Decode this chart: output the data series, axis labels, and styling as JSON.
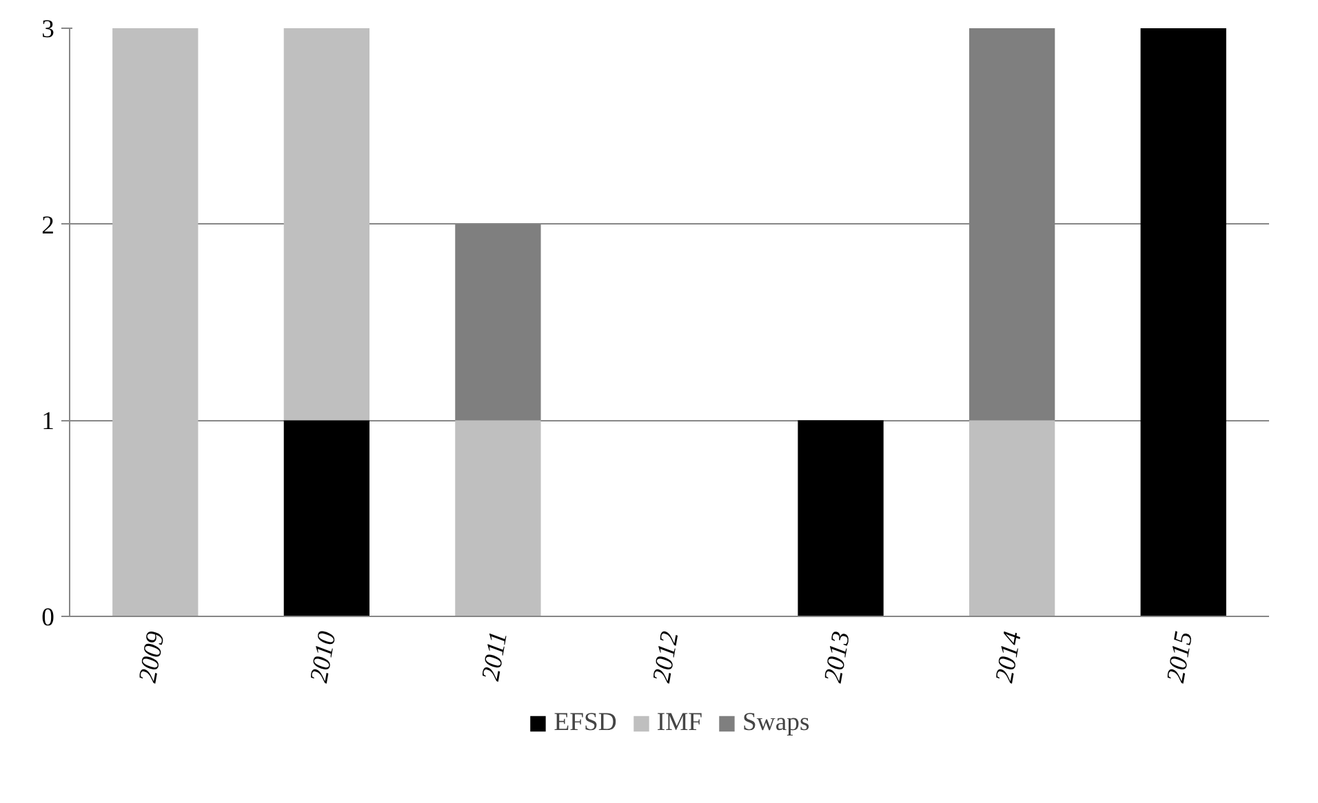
{
  "chart_data": {
    "type": "bar",
    "stacked": true,
    "categories": [
      "2009",
      "2010",
      "2011",
      "2012",
      "2013",
      "2014",
      "2015"
    ],
    "series": [
      {
        "name": "EFSD",
        "color": "#000000",
        "values": [
          0,
          1,
          0,
          0,
          1,
          0,
          3
        ]
      },
      {
        "name": "IMF",
        "color": "#bfbfbf",
        "values": [
          3,
          2,
          1,
          0,
          0,
          1,
          0
        ]
      },
      {
        "name": "Swaps",
        "color": "#7f7f7f",
        "values": [
          0,
          0,
          1,
          0,
          0,
          2,
          0
        ]
      }
    ],
    "ylim": [
      0,
      3
    ],
    "yticks": [
      0,
      1,
      2,
      3
    ],
    "grid": "y",
    "legend": "bottom"
  }
}
